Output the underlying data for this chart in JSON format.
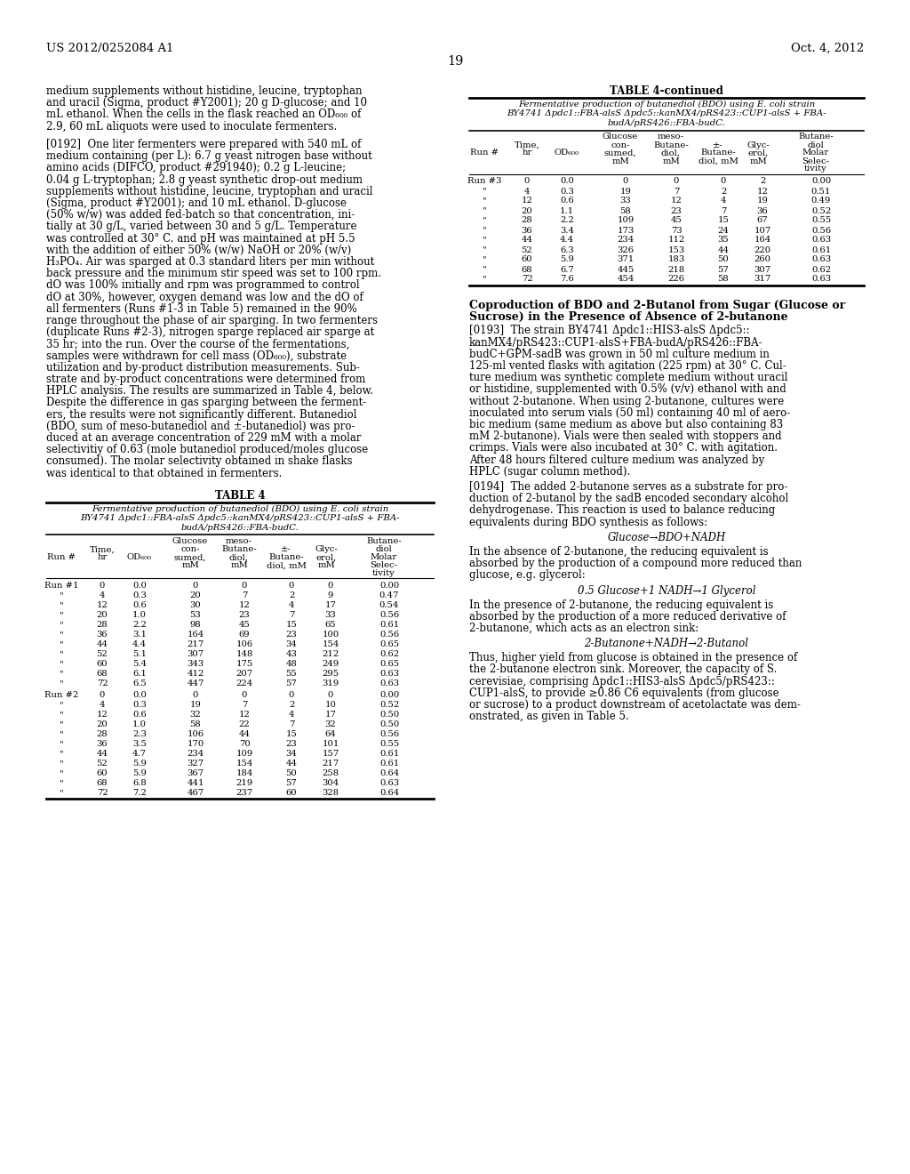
{
  "page_number": "19",
  "patent_number": "US 2012/0252084 A1",
  "patent_date": "Oct. 4, 2012",
  "left_col_lines": [
    "medium supplements without histidine, leucine, tryptophan",
    "and uracil (Sigma, product #Y2001); 20 g D-glucose; and 10",
    "mL ethanol. When the cells in the flask reached an OD₆₀₀ of",
    "2.9, 60 mL aliquots were used to inoculate fermenters.",
    "",
    "[0192]  One liter fermenters were prepared with 540 mL of",
    "medium containing (per L): 6.7 g yeast nitrogen base without",
    "amino acids (DIFCO, product #291940); 0.2 g L-leucine;",
    "0.04 g L-tryptophan; 2.8 g yeast synthetic drop-out medium",
    "supplements without histidine, leucine, tryptophan and uracil",
    "(Sigma, product #Y2001); and 10 mL ethanol. D-glucose",
    "(50% w/w) was added fed-batch so that concentration, ini-",
    "tially at 30 g/L, varied between 30 and 5 g/L. Temperature",
    "was controlled at 30° C. and pH was maintained at pH 5.5",
    "with the addition of either 50% (w/w) NaOH or 20% (w/v)",
    "H₃PO₄. Air was sparged at 0.3 standard liters per min without",
    "back pressure and the minimum stir speed was set to 100 rpm.",
    "dO was 100% initially and rpm was programmed to control",
    "dO at 30%, however, oxygen demand was low and the dO of",
    "all fermenters (Runs #1-3 in Table 5) remained in the 90%",
    "range throughout the phase of air sparging. In two fermenters",
    "(duplicate Runs #2-3), nitrogen sparge replaced air sparge at",
    "35 hr; into the run. Over the course of the fermentations,",
    "samples were withdrawn for cell mass (OD₆₀₀), substrate",
    "utilization and by-product distribution measurements. Sub-",
    "strate and by-product concentrations were determined from",
    "HPLC analysis. The results are summarized in Table 4, below.",
    "Despite the difference in gas sparging between the ferment-",
    "ers, the results were not significantly different. Butanediol",
    "(BDO, sum of meso-butanediol and ±-butanediol) was pro-",
    "duced at an average concentration of 229 mM with a molar",
    "selectivitiy of 0.63 (mole butanediol produced/moles glucose",
    "consumed). The molar selectivity obtained in shake flasks",
    "was identical to that obtained in fermenters."
  ],
  "table4_title": "TABLE 4",
  "table4_sub1": "Fermentative production of butanediol (BDO) using E. coli strain",
  "table4_sub2": "BY4741 Δpdc1::FBA-alsS Δpdc5::kanMX4/pRS423::CUP1-alsS + FBA-",
  "table4_sub3": "budA/pRS426::FBA-budC.",
  "table4_run1": [
    [
      "Run #1",
      "0",
      "0.0",
      "0",
      "0",
      "0",
      "0",
      "0.00"
    ],
    [
      "\"",
      "4",
      "0.3",
      "20",
      "7",
      "2",
      "9",
      "0.47"
    ],
    [
      "\"",
      "12",
      "0.6",
      "30",
      "12",
      "4",
      "17",
      "0.54"
    ],
    [
      "\"",
      "20",
      "1.0",
      "53",
      "23",
      "7",
      "33",
      "0.56"
    ],
    [
      "\"",
      "28",
      "2.2",
      "98",
      "45",
      "15",
      "65",
      "0.61"
    ],
    [
      "\"",
      "36",
      "3.1",
      "164",
      "69",
      "23",
      "100",
      "0.56"
    ],
    [
      "\"",
      "44",
      "4.4",
      "217",
      "106",
      "34",
      "154",
      "0.65"
    ],
    [
      "\"",
      "52",
      "5.1",
      "307",
      "148",
      "43",
      "212",
      "0.62"
    ],
    [
      "\"",
      "60",
      "5.4",
      "343",
      "175",
      "48",
      "249",
      "0.65"
    ],
    [
      "\"",
      "68",
      "6.1",
      "412",
      "207",
      "55",
      "295",
      "0.63"
    ],
    [
      "\"",
      "72",
      "6.5",
      "447",
      "224",
      "57",
      "319",
      "0.63"
    ]
  ],
  "table4_run2": [
    [
      "Run #2",
      "0",
      "0.0",
      "0",
      "0",
      "0",
      "0",
      "0.00"
    ],
    [
      "\"",
      "4",
      "0.3",
      "19",
      "7",
      "2",
      "10",
      "0.52"
    ],
    [
      "\"",
      "12",
      "0.6",
      "32",
      "12",
      "4",
      "17",
      "0.50"
    ],
    [
      "\"",
      "20",
      "1.0",
      "58",
      "22",
      "7",
      "32",
      "0.50"
    ],
    [
      "\"",
      "28",
      "2.3",
      "106",
      "44",
      "15",
      "64",
      "0.56"
    ],
    [
      "\"",
      "36",
      "3.5",
      "170",
      "70",
      "23",
      "101",
      "0.55"
    ],
    [
      "\"",
      "44",
      "4.7",
      "234",
      "109",
      "34",
      "157",
      "0.61"
    ],
    [
      "\"",
      "52",
      "5.9",
      "327",
      "154",
      "44",
      "217",
      "0.61"
    ],
    [
      "\"",
      "60",
      "5.9",
      "367",
      "184",
      "50",
      "258",
      "0.64"
    ],
    [
      "\"",
      "68",
      "6.8",
      "441",
      "219",
      "57",
      "304",
      "0.63"
    ],
    [
      "\"",
      "72",
      "7.2",
      "467",
      "237",
      "60",
      "328",
      "0.64"
    ]
  ],
  "table4cont_title": "TABLE 4-continued",
  "table4cont_sub1": "Fermentative production of butanediol (BDO) using E. coli strain",
  "table4cont_sub2": "BY4741 Δpdc1::FBA-alsS Δpdc5::kanMX4/pRS423::CUP1-alsS + FBA-",
  "table4cont_sub3": "budA/pRS426::FBA-budC.",
  "table4cont_run3": [
    [
      "Run #3",
      "0",
      "0.0",
      "0",
      "0",
      "0",
      "2",
      "0.00"
    ],
    [
      "\"",
      "4",
      "0.3",
      "19",
      "7",
      "2",
      "12",
      "0.51"
    ],
    [
      "\"",
      "12",
      "0.6",
      "33",
      "12",
      "4",
      "19",
      "0.49"
    ],
    [
      "\"",
      "20",
      "1.1",
      "58",
      "23",
      "7",
      "36",
      "0.52"
    ],
    [
      "\"",
      "28",
      "2.2",
      "109",
      "45",
      "15",
      "67",
      "0.55"
    ],
    [
      "\"",
      "36",
      "3.4",
      "173",
      "73",
      "24",
      "107",
      "0.56"
    ],
    [
      "\"",
      "44",
      "4.4",
      "234",
      "112",
      "35",
      "164",
      "0.63"
    ],
    [
      "\"",
      "52",
      "6.3",
      "326",
      "153",
      "44",
      "220",
      "0.61"
    ],
    [
      "\"",
      "60",
      "5.9",
      "371",
      "183",
      "50",
      "260",
      "0.63"
    ],
    [
      "\"",
      "68",
      "6.7",
      "445",
      "218",
      "57",
      "307",
      "0.62"
    ],
    [
      "\"",
      "72",
      "7.6",
      "454",
      "226",
      "58",
      "317",
      "0.63"
    ]
  ],
  "right_section_title_line1": "Coproduction of BDO and 2-Butanol from Sugar (Glucose or",
  "right_section_title_line2": "Sucrose) in the Presence of Absence of 2-butanone",
  "para0193_lines": [
    "[0193]  The strain BY4741 Δpdc1::HIS3-alsS Δpdc5::",
    "kanMX4/pRS423::CUP1-alsS+FBA-budA/pRS426::FBA-",
    "budC+GPM-sadB was grown in 50 ml culture medium in",
    "125-ml vented flasks with agitation (225 rpm) at 30° C. Cul-",
    "ture medium was synthetic complete medium without uracil",
    "or histidine, supplemented with 0.5% (v/v) ethanol with and",
    "without 2-butanone. When using 2-butanone, cultures were",
    "inoculated into serum vials (50 ml) containing 40 ml of aero-",
    "bic medium (same medium as above but also containing 83",
    "mM 2-butanone). Vials were then sealed with stoppers and",
    "crimps. Vials were also incubated at 30° C. with agitation.",
    "After 48 hours filtered culture medium was analyzed by",
    "HPLC (sugar column method)."
  ],
  "para0194_lines": [
    "[0194]  The added 2-butanone serves as a substrate for pro-",
    "duction of 2-butanol by the sadB encoded secondary alcohol",
    "dehydrogenase. This reaction is used to balance reducing",
    "equivalents during BDO synthesis as follows:"
  ],
  "equation1": "Glucose→BDO+NADH",
  "para_absence_lines": [
    "In the absence of 2-butanone, the reducing equivalent is",
    "absorbed by the production of a compound more reduced than",
    "glucose, e.g. glycerol:"
  ],
  "equation2": "0.5 Glucose+1 NADH→1 Glycerol",
  "para_presence_lines": [
    "In the presence of 2-butanone, the reducing equivalent is",
    "absorbed by the production of a more reduced derivative of",
    "2-butanone, which acts as an electron sink:"
  ],
  "equation3": "2-Butanone+NADH→2-Butanol",
  "para_thus_lines": [
    "Thus, higher yield from glucose is obtained in the presence of",
    "the 2-butanone electron sink. Moreover, the capacity of S.",
    "cerevisiae, comprising Δpdc1::HIS3-alsS Δpdc5/pRS423::",
    "CUP1-alsS, to provide ≥0.86 C6 equivalents (from glucose",
    "or sucrose) to a product downstream of acetolactate was dem-",
    "onstrated, as given in Table 5."
  ]
}
